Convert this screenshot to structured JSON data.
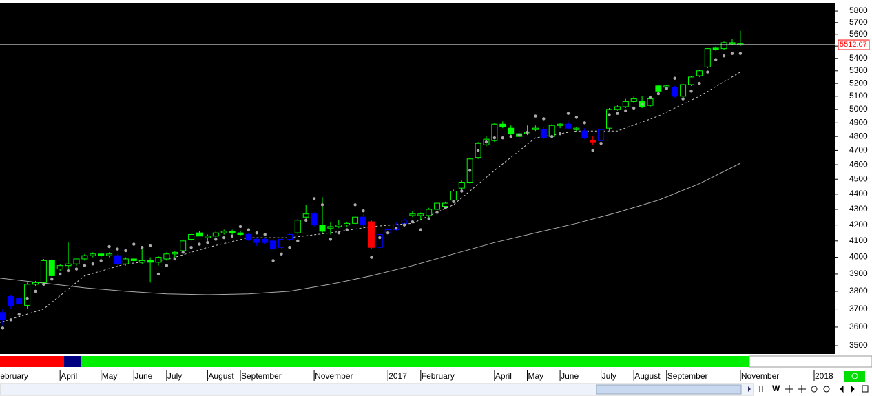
{
  "chart_data": {
    "type": "candlestick",
    "log_scale": true,
    "ylim": [
      3464,
      5867
    ],
    "yticks": [
      3500,
      3600,
      3700,
      3800,
      3900,
      4000,
      4100,
      4200,
      4300,
      4400,
      4500,
      4600,
      4700,
      4800,
      4900,
      5000,
      5100,
      5200,
      5300,
      5400,
      5500,
      5600,
      5700,
      5800
    ],
    "price_line": 5512.07,
    "price_line_color": "#ffffff",
    "price_label_color": "#ff0000",
    "categories": [
      "February",
      null,
      null,
      null,
      null,
      null,
      null,
      null,
      "April",
      null,
      null,
      null,
      null,
      "May",
      null,
      null,
      null,
      "June",
      null,
      null,
      null,
      "July",
      null,
      null,
      null,
      null,
      "August",
      null,
      null,
      null,
      "September",
      null,
      null,
      null,
      null,
      null,
      null,
      null,
      null,
      "November",
      null,
      null,
      null,
      null,
      null,
      null,
      null,
      null,
      "2017",
      null,
      null,
      null,
      "February",
      null,
      null,
      null,
      null,
      null,
      null,
      null,
      null,
      "April",
      null,
      null,
      null,
      "May",
      null,
      null,
      null,
      "June",
      null,
      null,
      null,
      null,
      "July",
      null,
      null,
      null,
      "August",
      null,
      null,
      null,
      "September",
      null,
      null,
      null,
      null,
      null,
      null,
      null,
      null,
      "November",
      null,
      null,
      null,
      null,
      null,
      null,
      null,
      null,
      "2018"
    ],
    "candles": {
      "open": [
        null,
        3680,
        3770,
        3760,
        3720,
        3840,
        3850,
        3980,
        3930,
        3950,
        3960,
        3990,
        4010,
        4020,
        4010,
        4010,
        3960,
        3990,
        3970,
        3980,
        3970,
        3990,
        4020,
        4040,
        4110,
        4150,
        4120,
        4130,
        4150,
        4160,
        4150,
        4140,
        4110,
        4110,
        4100,
        4060,
        4110,
        4150,
        4250,
        4270,
        4200,
        4180,
        4190,
        4200,
        4210,
        4250,
        4220,
        4060,
        4150,
        4170,
        4210,
        4260,
        4260,
        4260,
        4300,
        4320,
        4360,
        4440,
        4480,
        4650,
        4740,
        4770,
        4890,
        4860,
        4820,
        4820,
        4850,
        4850,
        4800,
        4880,
        4890,
        4850,
        4840,
        4770,
        4770,
        4860,
        5000,
        5020,
        5060,
        5060,
        5030,
        5180,
        5170,
        5170,
        5100,
        5190,
        5260,
        5330,
        5490,
        5480,
        5520,
        5510,
        null,
        null,
        null,
        null,
        null,
        null,
        null,
        null,
        null
      ],
      "high": [
        null,
        3700,
        3780,
        3770,
        3850,
        3860,
        3990,
        3990,
        3960,
        4090,
        3990,
        4020,
        4030,
        4030,
        4030,
        4020,
        4000,
        4000,
        4050,
        4000,
        4010,
        4030,
        4040,
        4110,
        4150,
        4160,
        4140,
        4160,
        4170,
        4170,
        4160,
        4150,
        4120,
        4120,
        4120,
        4120,
        4150,
        4240,
        4330,
        4280,
        4380,
        4220,
        4230,
        4220,
        4260,
        4270,
        4230,
        4150,
        4190,
        4220,
        4240,
        4290,
        4280,
        4310,
        4350,
        4350,
        4430,
        4490,
        4650,
        4760,
        4800,
        4900,
        4910,
        4880,
        4840,
        4880,
        4880,
        4870,
        4890,
        4900,
        4910,
        4870,
        4860,
        4800,
        4860,
        5010,
        5030,
        5080,
        5100,
        5100,
        5090,
        5190,
        5190,
        5180,
        5200,
        5260,
        5310,
        5490,
        5500,
        5540,
        5560,
        5630,
        null,
        null,
        null,
        null,
        null,
        null,
        null,
        null,
        null
      ],
      "low": [
        null,
        3610,
        3700,
        3730,
        3700,
        3830,
        3840,
        3880,
        3920,
        3930,
        3950,
        3980,
        4000,
        4000,
        4000,
        3950,
        3950,
        3970,
        3960,
        3850,
        3950,
        3980,
        4000,
        4030,
        4090,
        4130,
        4100,
        4120,
        4140,
        4140,
        4130,
        4100,
        4070,
        4080,
        4050,
        4050,
        4100,
        4140,
        4240,
        4190,
        4150,
        4140,
        4180,
        4190,
        4200,
        4190,
        4050,
        4030,
        4140,
        4160,
        4200,
        4250,
        4230,
        4250,
        4290,
        4310,
        4350,
        4430,
        4470,
        4640,
        4730,
        4760,
        4860,
        4810,
        4790,
        4810,
        4840,
        4780,
        4790,
        4860,
        4850,
        4840,
        4780,
        4740,
        4760,
        4840,
        4990,
        5010,
        5050,
        5010,
        5020,
        5130,
        5160,
        5090,
        5090,
        5180,
        5250,
        5320,
        5460,
        5470,
        5510,
        5500,
        null,
        null,
        null,
        null,
        null,
        null,
        null,
        null,
        null
      ],
      "close": [
        null,
        3640,
        3720,
        3730,
        3840,
        3850,
        3980,
        3890,
        3950,
        3960,
        3990,
        4010,
        4020,
        4010,
        4020,
        3960,
        3990,
        3980,
        3980,
        3970,
        4000,
        4020,
        4030,
        4100,
        4140,
        4130,
        4130,
        4150,
        4160,
        4150,
        4140,
        4110,
        4090,
        4090,
        4050,
        4110,
        4140,
        4230,
        4270,
        4200,
        4160,
        4190,
        4200,
        4210,
        4250,
        4200,
        4060,
        4140,
        4170,
        4200,
        4230,
        4270,
        4270,
        4300,
        4340,
        4340,
        4420,
        4480,
        4640,
        4750,
        4780,
        4890,
        4870,
        4820,
        4800,
        4830,
        4860,
        4790,
        4880,
        4890,
        4860,
        4860,
        4790,
        4760,
        4850,
        5000,
        5020,
        5060,
        5080,
        5020,
        5080,
        5140,
        5180,
        5100,
        5190,
        5250,
        5300,
        5480,
        5470,
        5530,
        5530,
        5520,
        null,
        null,
        null,
        null,
        null,
        null,
        null,
        null,
        null
      ],
      "colors": [
        null,
        "#0000ff",
        "#0000ff",
        "#0000ff",
        "#00ff00",
        "#00ff00",
        "#00ff00",
        "#00ff00",
        "#00ff00",
        "#00ff00",
        "#00ff00",
        "#00ff00",
        "#00ff00",
        "#00ff00",
        "#00ff00",
        "#0000ff",
        "#00ff00",
        "#00ff00",
        "#00ff00",
        "#00ff00",
        "#00ff00",
        "#00ff00",
        "#00ff00",
        "#00ff00",
        "#00ff00",
        "#00ff00",
        "#00ff00",
        "#00ff00",
        "#00ff00",
        "#00ff00",
        "#00ff00",
        "#0000ff",
        "#0000ff",
        "#0000ff",
        "#0000ff",
        "#0000ff",
        "#0000ff",
        "#00ff00",
        "#00ff00",
        "#0000ff",
        "#00ff00",
        "#00ff00",
        "#00ff00",
        "#00ff00",
        "#00ff00",
        "#0000ff",
        "#ff0000",
        "#0000ff",
        "#0000ff",
        "#0000ff",
        "#0000ff",
        "#00ff00",
        "#00ff00",
        "#00ff00",
        "#00ff00",
        "#00ff00",
        "#00ff00",
        "#00ff00",
        "#00ff00",
        "#00ff00",
        "#00ff00",
        "#00ff00",
        "#00ff00",
        "#00ff00",
        "#00ff00",
        "#00ff00",
        "#00ff00",
        "#0000ff",
        "#00ff00",
        "#00ff00",
        "#0000ff",
        "#00ff00",
        "#0000ff",
        "#ff0000",
        "#0000ff",
        "#00ff00",
        "#00ff00",
        "#00ff00",
        "#00ff00",
        "#00ff00",
        "#00ff00",
        "#00ff00",
        "#00ff00",
        "#0000ff",
        "#00ff00",
        "#00ff00",
        "#00ff00",
        "#00ff00",
        "#00ff00",
        "#00ff00",
        "#00ff00",
        "#00ff00",
        null,
        null,
        null,
        null,
        null,
        null,
        null,
        null,
        null
      ],
      "sar": [
        null,
        3595,
        3640,
        3670,
        3760,
        3800,
        3840,
        3870,
        3900,
        3920,
        3930,
        3950,
        3960,
        3980,
        4065,
        4050,
        4040,
        4080,
        4060,
        4070,
        3900,
        3950,
        3990,
        4030,
        4060,
        4080,
        4090,
        4110,
        4120,
        4130,
        4190,
        4170,
        4150,
        4140,
        3980,
        4020,
        4060,
        4100,
        4230,
        4370,
        4330,
        4110,
        4150,
        4170,
        4330,
        4290,
        4000,
        4120,
        4150,
        4180,
        4200,
        4220,
        4170,
        4240,
        4280,
        4310,
        4350,
        4420,
        4560,
        4700,
        4760,
        4790,
        4790,
        4800,
        4810,
        4830,
        4950,
        4930,
        4800,
        4820,
        4970,
        4940,
        4900,
        4700,
        4750,
        4960,
        4970,
        4990,
        5010,
        5040,
        5090,
        5120,
        5160,
        5240,
        5080,
        5140,
        5200,
        5290,
        5390,
        5420,
        5440,
        5440,
        null,
        null,
        null,
        null,
        null,
        null,
        null,
        null,
        null
      ],
      "sar_color": "#aaaaaa"
    },
    "lines": [
      {
        "color": "#cccccc",
        "dashed": true,
        "x": [
          0,
          6,
          11,
          16,
          21,
          26,
          31,
          36,
          41,
          46,
          51,
          56,
          61,
          66,
          71,
          76,
          81,
          86,
          91
        ],
        "values": [
          3615,
          3700,
          3890,
          3960,
          3985,
          4060,
          4120,
          4120,
          4150,
          4190,
          4210,
          4330,
          4560,
          4790,
          4840,
          4840,
          4950,
          5100,
          5290
        ]
      },
      {
        "color": "#aaaaaa",
        "dashed": false,
        "x": [
          0,
          11,
          16,
          21,
          26,
          31,
          36,
          41,
          46,
          51,
          56,
          61,
          66,
          71,
          76,
          81,
          86,
          91
        ],
        "values": [
          3880,
          3820,
          3800,
          3785,
          3780,
          3785,
          3800,
          3840,
          3890,
          3950,
          4020,
          4090,
          4150,
          4210,
          4280,
          4360,
          4470,
          4610
        ]
      }
    ],
    "toolbar_label": "W"
  }
}
